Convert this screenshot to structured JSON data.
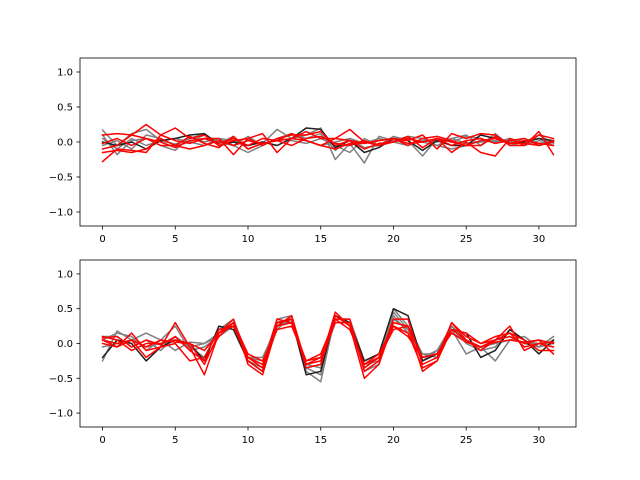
{
  "chart_data": [
    {
      "type": "line",
      "xlim": [
        -1.55,
        32.55
      ],
      "ylim": [
        -1.2,
        1.2
      ],
      "xticks": [
        0,
        5,
        10,
        15,
        20,
        25,
        30
      ],
      "yticks": [
        -1.0,
        -0.5,
        0.0,
        0.5,
        1.0
      ],
      "grid": false,
      "legend": "none",
      "series": [
        {
          "color": "#808080",
          "values": [
            0.17,
            -0.05,
            0.12,
            0.18,
            0.02,
            -0.03,
            0.05,
            0.12,
            -0.02,
            0.08,
            -0.1,
            -0.02,
            0.18,
            0.05,
            0.1,
            0.2,
            -0.25,
            -0.02,
            -0.3,
            0.08,
            0.02,
            0.08,
            0.05,
            -0.05,
            0.05,
            0.1,
            -0.05,
            0.12,
            -0.05,
            0.0,
            0.1,
            -0.02
          ]
        },
        {
          "color": "#808080",
          "values": [
            0.1,
            -0.18,
            0.02,
            0.05,
            -0.05,
            -0.12,
            0.08,
            0.0,
            0.05,
            -0.05,
            0.08,
            -0.05,
            0.05,
            0.12,
            0.05,
            0.12,
            -0.12,
            0.05,
            -0.08,
            -0.05,
            0.08,
            0.02,
            -0.2,
            0.05,
            0.0,
            0.08,
            0.05,
            -0.02,
            0.05,
            0.0,
            0.05,
            -0.05
          ]
        },
        {
          "color": "#808080",
          "values": [
            -0.05,
            0.02,
            -0.1,
            0.1,
            0.05,
            -0.05,
            0.0,
            0.1,
            0.0,
            -0.05,
            -0.15,
            -0.05,
            0.05,
            0.02,
            -0.02,
            0.05,
            -0.05,
            -0.15,
            0.05,
            -0.05,
            0.02,
            0.05,
            0.0,
            -0.05,
            -0.1,
            -0.05,
            0.02,
            0.0,
            0.05,
            -0.05,
            0.02,
            0.0
          ]
        },
        {
          "color": "#808080",
          "values": [
            0.05,
            -0.1,
            0.05,
            -0.05,
            0.02,
            0.05,
            0.0,
            -0.05,
            0.05,
            0.02,
            -0.05,
            0.0,
            -0.05,
            0.05,
            0.02,
            -0.05,
            0.0,
            0.05,
            -0.02,
            0.05,
            0.0,
            -0.05,
            0.02,
            0.0,
            0.05,
            -0.02,
            0.0,
            0.02,
            0.0,
            0.05,
            -0.02,
            0.02
          ]
        },
        {
          "color": "#202020",
          "values": [
            0.0,
            -0.05,
            0.0,
            -0.1,
            0.02,
            0.05,
            0.1,
            0.12,
            -0.05,
            0.0,
            -0.05,
            0.0,
            -0.05,
            0.05,
            0.2,
            0.18,
            -0.08,
            0.02,
            -0.15,
            -0.08,
            0.05,
            0.02,
            -0.12,
            0.02,
            -0.05,
            -0.05,
            0.1,
            0.05,
            -0.02,
            0.0,
            0.05,
            0.02
          ]
        },
        {
          "color": "#ff0000",
          "values": [
            -0.28,
            -0.1,
            -0.12,
            -0.15,
            0.1,
            0.02,
            -0.02,
            0.05,
            0.05,
            -0.18,
            0.05,
            -0.05,
            0.05,
            0.1,
            0.1,
            0.15,
            -0.05,
            0.02,
            -0.1,
            -0.02,
            0.0,
            0.08,
            -0.08,
            0.05,
            -0.15,
            0.0,
            -0.15,
            -0.2,
            0.05,
            -0.05,
            0.15,
            -0.18
          ]
        },
        {
          "color": "#ff0000",
          "values": [
            0.1,
            0.12,
            0.1,
            0.25,
            0.1,
            0.2,
            0.05,
            0.1,
            -0.05,
            0.02,
            0.05,
            0.12,
            -0.15,
            0.05,
            0.15,
            0.05,
            0.05,
            0.18,
            0.0,
            -0.05,
            0.05,
            0.02,
            0.1,
            -0.1,
            0.12,
            0.05,
            0.12,
            0.1,
            -0.05,
            -0.05,
            0.1,
            0.05
          ]
        },
        {
          "color": "#ff0000",
          "values": [
            -0.15,
            -0.12,
            -0.15,
            -0.1,
            0.05,
            -0.05,
            0.08,
            -0.02,
            -0.08,
            0.08,
            -0.1,
            -0.02,
            0.02,
            0.12,
            0.02,
            -0.05,
            -0.1,
            -0.02,
            -0.02,
            0.02,
            0.05,
            -0.05,
            0.05,
            0.08,
            0.02,
            -0.05,
            -0.05,
            0.08,
            -0.02,
            -0.02,
            -0.05,
            0.0
          ]
        },
        {
          "color": "#ff0000",
          "values": [
            -0.1,
            -0.05,
            0.1,
            0.05,
            -0.05,
            -0.05,
            -0.1,
            -0.05,
            0.02,
            -0.05,
            0.02,
            -0.02,
            0.02,
            -0.05,
            0.05,
            0.08,
            -0.02,
            -0.05,
            0.02,
            -0.05,
            0.0,
            0.05,
            0.0,
            0.05,
            0.0,
            -0.05,
            0.02,
            0.05,
            -0.02,
            0.02,
            -0.02,
            -0.05
          ]
        },
        {
          "color": "#ff0000",
          "values": [
            -0.02,
            0.05,
            -0.05,
            0.05,
            0.0,
            -0.08,
            0.02,
            0.05,
            -0.02,
            0.05,
            -0.05,
            0.05,
            0.02,
            0.05,
            0.02,
            -0.05,
            0.05,
            0.02,
            -0.02,
            0.02,
            0.05,
            -0.02,
            0.0,
            0.05,
            -0.05,
            0.02,
            0.05,
            -0.02,
            0.02,
            0.05,
            -0.05,
            0.02
          ]
        }
      ]
    },
    {
      "type": "line",
      "xlim": [
        -1.55,
        32.55
      ],
      "ylim": [
        -1.2,
        1.2
      ],
      "xticks": [
        0,
        5,
        10,
        15,
        20,
        25,
        30
      ],
      "yticks": [
        -1.0,
        -0.5,
        0.0,
        0.5,
        1.0
      ],
      "grid": false,
      "legend": "none",
      "series": [
        {
          "color": "#808080",
          "values": [
            -0.25,
            0.18,
            0.05,
            0.15,
            0.05,
            0.25,
            -0.1,
            -0.05,
            0.1,
            0.3,
            -0.25,
            -0.35,
            0.2,
            0.4,
            -0.4,
            -0.55,
            0.4,
            0.3,
            -0.35,
            -0.2,
            0.5,
            0.25,
            -0.15,
            -0.2,
            0.25,
            0.05,
            -0.05,
            -0.25,
            0.05,
            0.1,
            -0.05,
            0.1
          ]
        },
        {
          "color": "#808080",
          "values": [
            0.1,
            0.1,
            -0.05,
            0.05,
            -0.1,
            0.1,
            -0.05,
            -0.2,
            0.2,
            0.35,
            -0.2,
            -0.3,
            0.35,
            0.4,
            -0.35,
            -0.45,
            0.35,
            0.35,
            -0.25,
            -0.15,
            0.35,
            0.2,
            -0.2,
            -0.1,
            0.2,
            -0.15,
            -0.05,
            0.05,
            0.1,
            0.0,
            -0.05,
            0.05
          ]
        },
        {
          "color": "#808080",
          "values": [
            0.05,
            0.15,
            0.1,
            -0.1,
            0.05,
            -0.1,
            0.02,
            0.0,
            0.15,
            0.3,
            -0.2,
            -0.25,
            0.3,
            0.3,
            -0.35,
            -0.3,
            0.3,
            0.3,
            -0.3,
            -0.25,
            0.4,
            0.15,
            -0.25,
            -0.1,
            0.25,
            0.0,
            -0.1,
            -0.05,
            0.2,
            0.05,
            -0.05,
            0.0
          ]
        },
        {
          "color": "#808080",
          "values": [
            -0.05,
            0.0,
            0.05,
            -0.05,
            0.0,
            0.05,
            -0.05,
            0.0,
            0.1,
            0.25,
            -0.2,
            -0.2,
            0.25,
            0.35,
            -0.3,
            -0.35,
            0.4,
            0.3,
            -0.4,
            -0.3,
            0.45,
            0.2,
            -0.15,
            -0.15,
            0.15,
            0.05,
            -0.05,
            0.0,
            0.05,
            0.02,
            0.0,
            0.02
          ]
        },
        {
          "color": "#202020",
          "values": [
            -0.2,
            0.05,
            0.0,
            -0.25,
            -0.05,
            0.05,
            0.0,
            -0.25,
            0.25,
            0.2,
            -0.25,
            -0.4,
            0.3,
            0.35,
            -0.45,
            -0.4,
            0.4,
            0.3,
            -0.25,
            -0.15,
            0.5,
            0.4,
            -0.25,
            -0.15,
            0.2,
            0.15,
            -0.2,
            -0.1,
            0.2,
            0.05,
            -0.15,
            0.05
          ]
        },
        {
          "color": "#ff0000",
          "values": [
            0.05,
            -0.05,
            0.05,
            -0.2,
            -0.05,
            0.3,
            -0.05,
            -0.45,
            0.15,
            0.35,
            -0.3,
            -0.45,
            0.25,
            0.4,
            -0.3,
            -0.25,
            0.45,
            0.25,
            -0.5,
            -0.3,
            0.3,
            0.25,
            -0.4,
            -0.25,
            0.3,
            0.1,
            0.0,
            0.05,
            0.15,
            0.05,
            -0.1,
            -0.1
          ]
        },
        {
          "color": "#ff0000",
          "values": [
            0.1,
            0.05,
            -0.1,
            0.0,
            0.0,
            0.05,
            0.0,
            -0.3,
            0.15,
            0.3,
            -0.25,
            -0.4,
            0.3,
            0.35,
            -0.35,
            -0.3,
            0.35,
            0.35,
            -0.4,
            -0.25,
            0.35,
            0.35,
            -0.3,
            -0.2,
            0.3,
            0.05,
            -0.1,
            0.05,
            0.1,
            0.0,
            0.05,
            -0.15
          ]
        },
        {
          "color": "#ff0000",
          "values": [
            0.0,
            -0.05,
            0.15,
            -0.1,
            -0.05,
            0.0,
            -0.25,
            -0.2,
            0.2,
            0.25,
            -0.2,
            -0.35,
            0.35,
            0.3,
            -0.3,
            -0.2,
            0.4,
            0.25,
            -0.3,
            -0.2,
            0.25,
            0.15,
            -0.35,
            -0.25,
            0.2,
            0.15,
            0.0,
            0.1,
            0.15,
            -0.05,
            0.0,
            -0.05
          ]
        },
        {
          "color": "#ff0000",
          "values": [
            0.05,
            0.0,
            0.05,
            -0.05,
            0.05,
            0.02,
            0.0,
            -0.1,
            0.15,
            0.25,
            -0.2,
            -0.3,
            0.25,
            0.3,
            -0.25,
            -0.2,
            0.3,
            0.3,
            -0.35,
            -0.2,
            0.2,
            0.25,
            -0.2,
            -0.15,
            0.15,
            0.02,
            -0.05,
            0.02,
            0.05,
            0.02,
            0.05,
            0.0
          ]
        },
        {
          "color": "#ff0000",
          "values": [
            0.08,
            0.1,
            -0.05,
            0.05,
            -0.02,
            0.1,
            -0.1,
            -0.25,
            0.1,
            0.3,
            -0.15,
            -0.25,
            0.2,
            0.25,
            -0.25,
            -0.15,
            0.35,
            0.2,
            -0.3,
            -0.15,
            0.25,
            0.1,
            -0.2,
            -0.15,
            0.2,
            0.05,
            -0.05,
            0.05,
            0.25,
            -0.1,
            0.0,
            0.02
          ]
        }
      ]
    }
  ]
}
